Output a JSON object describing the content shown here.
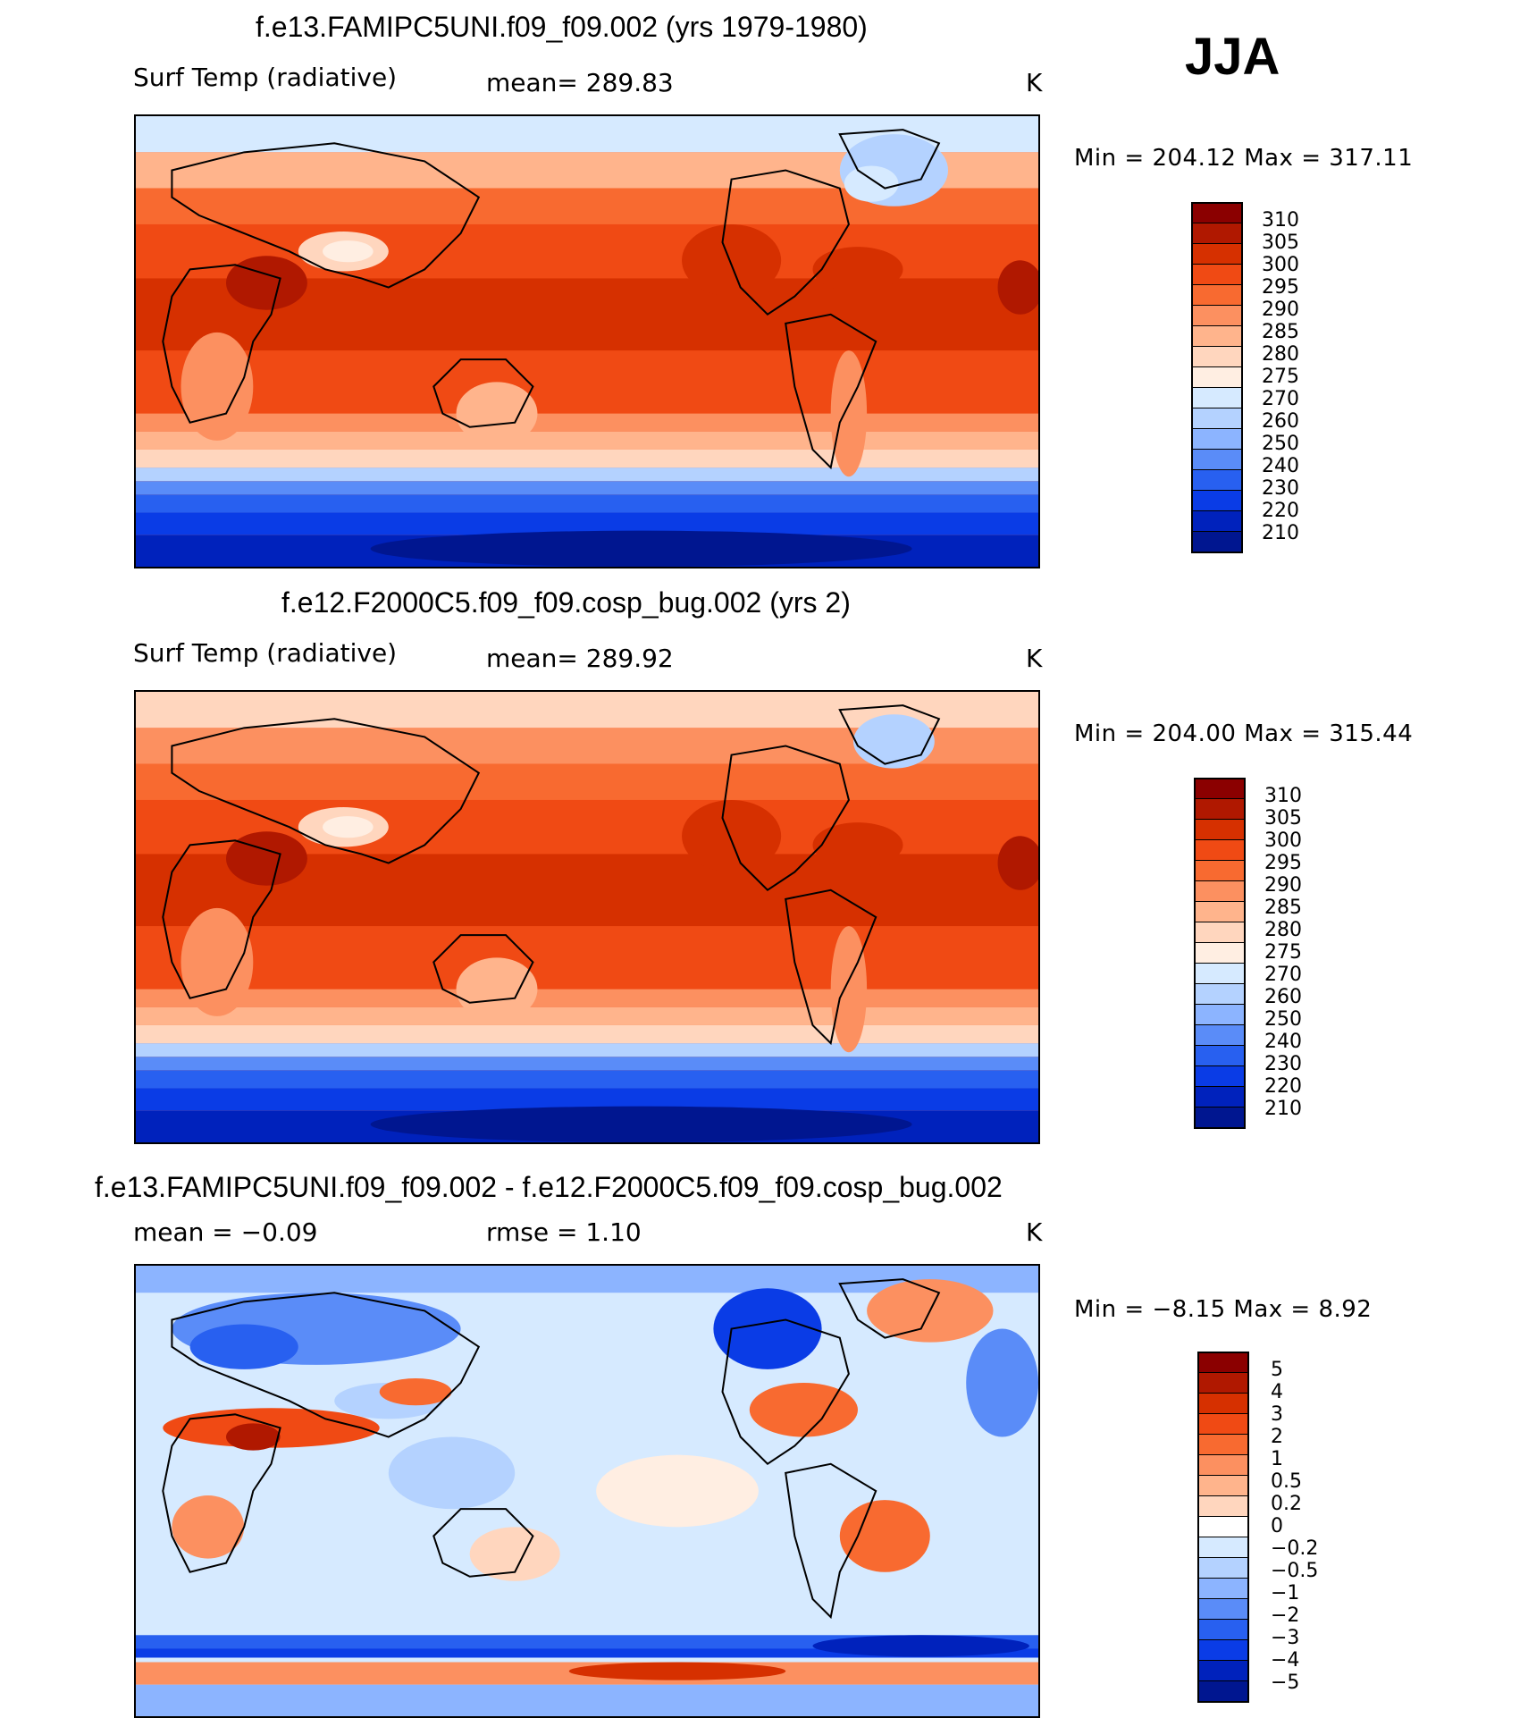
{
  "season": "JJA",
  "panels": [
    {
      "title": "f.e13.FAMIPC5UNI.f09_f09.002 (yrs 1979-1980)",
      "left_label": "Surf Temp (radiative)",
      "center_label": "mean=  289.83",
      "units": "K",
      "minmax": "Min  =  204.12  Max  =  317.11",
      "colorbar": {
        "labels": [
          "310",
          "305",
          "300",
          "295",
          "290",
          "285",
          "280",
          "275",
          "270",
          "260",
          "250",
          "240",
          "230",
          "220",
          "210"
        ],
        "colors": [
          "#8b0000",
          "#b01800",
          "#d63000",
          "#f04a14",
          "#f86a30",
          "#fc9060",
          "#ffb48c",
          "#ffd6be",
          "#ffeee2",
          "#d6eaff",
          "#b4d2ff",
          "#8cb4ff",
          "#5a8cf8",
          "#2860f0",
          "#0a3ce6",
          "#0022bc",
          "#001690"
        ]
      }
    },
    {
      "title": "f.e12.F2000C5.f09_f09.cosp_bug.002 (yrs 2)",
      "left_label": "Surf Temp (radiative)",
      "center_label": "mean=  289.92",
      "units": "K",
      "minmax": "Min  =  204.00  Max  =  315.44",
      "colorbar": {
        "labels": [
          "310",
          "305",
          "300",
          "295",
          "290",
          "285",
          "280",
          "275",
          "270",
          "260",
          "250",
          "240",
          "230",
          "220",
          "210"
        ],
        "colors": [
          "#8b0000",
          "#b01800",
          "#d63000",
          "#f04a14",
          "#f86a30",
          "#fc9060",
          "#ffb48c",
          "#ffd6be",
          "#ffeee2",
          "#d6eaff",
          "#b4d2ff",
          "#8cb4ff",
          "#5a8cf8",
          "#2860f0",
          "#0a3ce6",
          "#0022bc",
          "#001690"
        ]
      }
    },
    {
      "title": "f.e13.FAMIPC5UNI.f09_f09.002 - f.e12.F2000C5.f09_f09.cosp_bug.002",
      "left_label": "mean  =    −0.09",
      "center_label": "rmse  =      1.10",
      "units": "K",
      "minmax": "Min  =    −8.15  Max  =       8.92",
      "colorbar": {
        "labels": [
          "5",
          "4",
          "3",
          "2",
          "1",
          "0.5",
          "0.2",
          "0",
          "−0.2",
          "−0.5",
          "−1",
          "−2",
          "−3",
          "−4",
          "−5"
        ],
        "colors": [
          "#8b0000",
          "#b01800",
          "#d63000",
          "#f04a14",
          "#f86a30",
          "#fc9060",
          "#ffb48c",
          "#ffd6be",
          "#ffffff",
          "#d6eaff",
          "#b4d2ff",
          "#8cb4ff",
          "#5a8cf8",
          "#2860f0",
          "#0a3ce6",
          "#0022bc",
          "#001690"
        ]
      }
    }
  ]
}
